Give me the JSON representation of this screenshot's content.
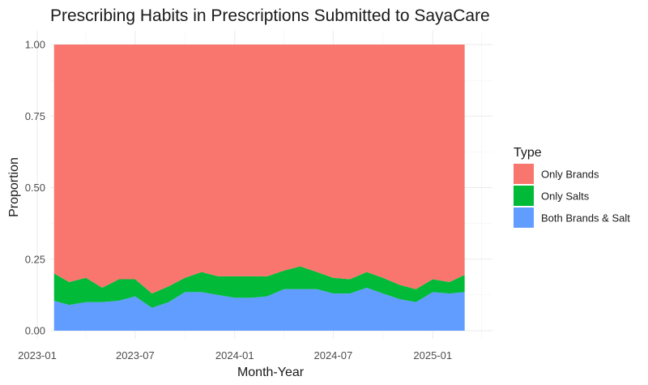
{
  "chart_data": {
    "type": "area",
    "stacked": "proportion",
    "title": "Prescribing Habits in Prescriptions Submitted to SayaCare",
    "xlabel": "Month-Year",
    "ylabel": "Proportion",
    "xlim": [
      "2023-01-01",
      "2025-03-15"
    ],
    "ylim": [
      0,
      1
    ],
    "x_ticks": [
      "2023-01-01",
      "2023-07-01",
      "2024-01-01",
      "2024-07-01",
      "2025-01-01"
    ],
    "x_tick_labels": [
      "2023-01",
      "2023-07",
      "2024-01",
      "2024-07",
      "2025-01"
    ],
    "y_ticks": [
      0,
      0.25,
      0.5,
      0.75,
      1
    ],
    "y_tick_labels": [
      "0.00",
      "0.25",
      "0.50",
      "0.75",
      "1.00"
    ],
    "grid": true,
    "legend": {
      "title": "Type",
      "position": "right",
      "entries": [
        "Only Brands",
        "Only Salts",
        "Both Brands & Salt"
      ]
    },
    "x": [
      "2023-02-01",
      "2023-03-01",
      "2023-04-01",
      "2023-05-01",
      "2023-06-01",
      "2023-07-01",
      "2023-08-01",
      "2023-09-01",
      "2023-10-01",
      "2023-11-01",
      "2023-12-01",
      "2024-01-01",
      "2024-02-01",
      "2024-03-01",
      "2024-04-01",
      "2024-05-01",
      "2024-06-01",
      "2024-07-01",
      "2024-08-01",
      "2024-09-01",
      "2024-10-01",
      "2024-11-01",
      "2024-12-01",
      "2025-01-01",
      "2025-02-01",
      "2025-03-01"
    ],
    "series": [
      {
        "name": "Both Brands & Salt",
        "color": "#619CFF",
        "values": [
          0.105,
          0.09,
          0.1,
          0.1,
          0.105,
          0.12,
          0.08,
          0.1,
          0.135,
          0.135,
          0.125,
          0.115,
          0.115,
          0.12,
          0.145,
          0.145,
          0.145,
          0.13,
          0.13,
          0.15,
          0.13,
          0.11,
          0.1,
          0.135,
          0.13,
          0.135
        ]
      },
      {
        "name": "Only Salts",
        "color": "#00BA38",
        "values": [
          0.095,
          0.08,
          0.085,
          0.05,
          0.075,
          0.06,
          0.05,
          0.055,
          0.05,
          0.07,
          0.065,
          0.075,
          0.075,
          0.07,
          0.065,
          0.08,
          0.06,
          0.055,
          0.05,
          0.055,
          0.055,
          0.05,
          0.045,
          0.045,
          0.04,
          0.06
        ]
      },
      {
        "name": "Only Brands",
        "color": "#F8766D",
        "values": [
          0.8,
          0.83,
          0.815,
          0.85,
          0.82,
          0.82,
          0.87,
          0.845,
          0.815,
          0.795,
          0.81,
          0.81,
          0.81,
          0.81,
          0.79,
          0.775,
          0.795,
          0.815,
          0.82,
          0.795,
          0.815,
          0.84,
          0.855,
          0.82,
          0.83,
          0.805
        ]
      }
    ]
  }
}
